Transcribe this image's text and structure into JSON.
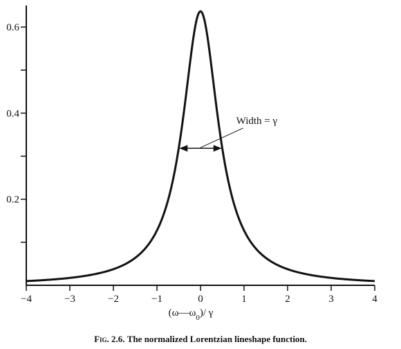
{
  "chart_data": {
    "type": "line",
    "title": "",
    "xlabel_parts": [
      "(ω—ω",
      "0",
      ")/  γ"
    ],
    "ylabel": "",
    "xlim": [
      -4,
      4
    ],
    "ylim": [
      0,
      0.65
    ],
    "x_ticks": [
      -4,
      -3,
      -2,
      -1,
      0,
      1,
      2,
      3,
      4
    ],
    "x_tick_labels": [
      "−4",
      "−3",
      "−2",
      "−1",
      "0",
      "1",
      "2",
      "3",
      "4"
    ],
    "y_ticks": [
      0.1,
      0.2,
      0.3,
      0.4,
      0.5,
      0.6
    ],
    "y_tick_labels": [
      "",
      "0.2",
      "",
      "0.4",
      "",
      "0.6"
    ],
    "grid": false,
    "series": [
      {
        "x": [
          -4,
          -3.5,
          -3,
          -2.5,
          -2,
          -1.5,
          -1.25,
          -1,
          -0.75,
          -0.5,
          -0.4,
          -0.3,
          -0.2,
          -0.1,
          0,
          0.1,
          0.2,
          0.3,
          0.4,
          0.5,
          0.75,
          1,
          1.25,
          1.5,
          2,
          2.5,
          3,
          3.5,
          4
        ],
        "y": [
          0.0097,
          0.0127,
          0.0172,
          0.0245,
          0.0374,
          0.0637,
          0.0866,
          0.1273,
          0.2037,
          0.3183,
          0.3901,
          0.4681,
          0.5487,
          0.6121,
          0.6366,
          0.6121,
          0.5487,
          0.4681,
          0.3901,
          0.3183,
          0.2037,
          0.1273,
          0.0866,
          0.0637,
          0.0374,
          0.0245,
          0.0172,
          0.0127,
          0.0097
        ]
      }
    ],
    "annotations": [
      {
        "text": "Width =  γ",
        "x": 0.82,
        "y": 0.375
      }
    ],
    "width_marker": {
      "x_from": -0.5,
      "x_to": 0.5,
      "y": 0.3183
    },
    "caption_lead": "Fig. 2.6.",
    "caption_text": "The normalized Lorentzian lineshape function."
  }
}
